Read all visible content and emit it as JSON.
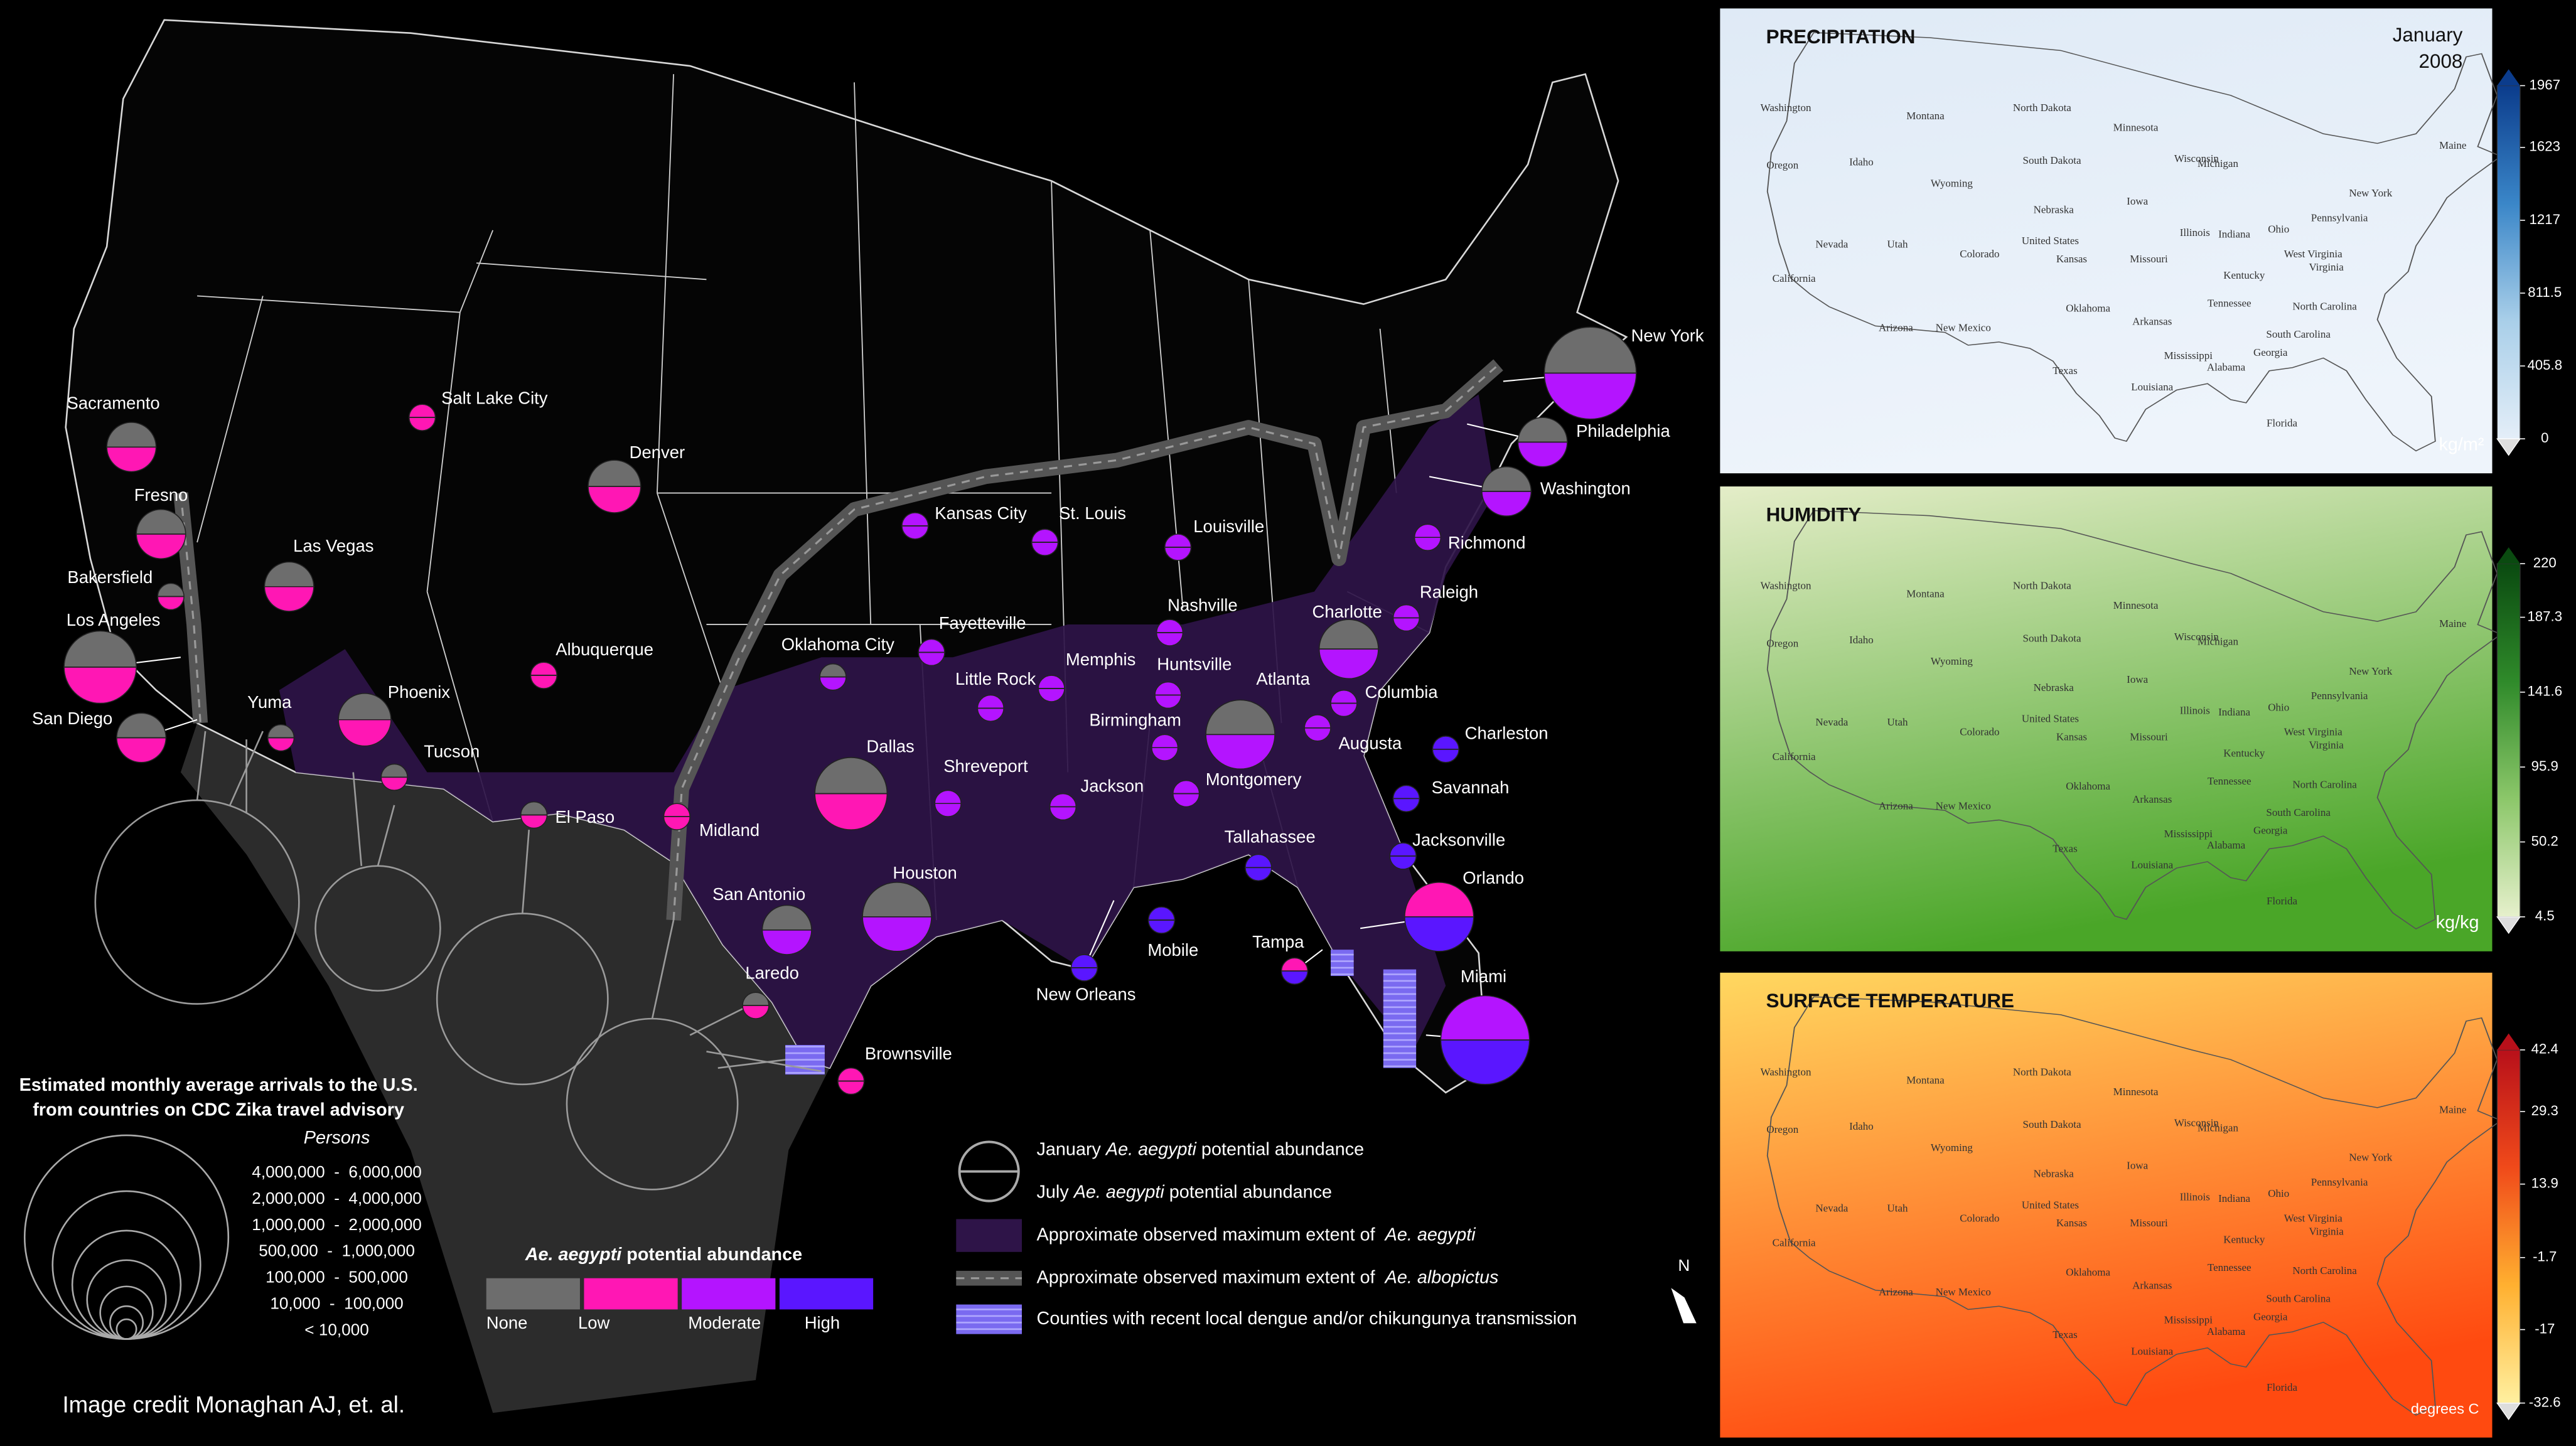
{
  "map": {
    "cities": [
      {
        "name": "New York",
        "january": "None",
        "july": "Moderate"
      },
      {
        "name": "Philadelphia",
        "january": "None",
        "july": "Moderate"
      },
      {
        "name": "Washington",
        "january": "None",
        "july": "Moderate"
      },
      {
        "name": "Richmond",
        "january": "Moderate",
        "july": "Moderate"
      },
      {
        "name": "Raleigh",
        "january": "Moderate",
        "july": "Moderate"
      },
      {
        "name": "Charlotte",
        "january": "None",
        "july": "Moderate"
      },
      {
        "name": "Columbia",
        "january": "Moderate",
        "july": "Moderate"
      },
      {
        "name": "Charleston",
        "january": "High",
        "july": "High"
      },
      {
        "name": "Augusta",
        "january": "Moderate",
        "july": "Moderate"
      },
      {
        "name": "Savannah",
        "january": "High",
        "july": "High"
      },
      {
        "name": "Jacksonville",
        "january": "High",
        "july": "High"
      },
      {
        "name": "Orlando",
        "january": "Low",
        "july": "High"
      },
      {
        "name": "Tampa",
        "january": "Low",
        "july": "High"
      },
      {
        "name": "Miami",
        "january": "Moderate",
        "july": "High"
      },
      {
        "name": "Tallahassee",
        "january": "High",
        "july": "High"
      },
      {
        "name": "Atlanta",
        "january": "None",
        "july": "Moderate"
      },
      {
        "name": "Montgomery",
        "january": "Moderate",
        "july": "Moderate"
      },
      {
        "name": "Birmingham",
        "january": "Moderate",
        "july": "Moderate"
      },
      {
        "name": "Huntsville",
        "january": "Moderate",
        "july": "Moderate"
      },
      {
        "name": "Nashville",
        "january": "Moderate",
        "july": "Moderate"
      },
      {
        "name": "Louisville",
        "january": "Moderate",
        "july": "Moderate"
      },
      {
        "name": "St. Louis",
        "january": "Moderate",
        "july": "Moderate"
      },
      {
        "name": "Kansas City",
        "january": "Moderate",
        "july": "Moderate"
      },
      {
        "name": "Memphis",
        "january": "Moderate",
        "july": "Moderate"
      },
      {
        "name": "Little Rock",
        "january": "Moderate",
        "july": "Moderate"
      },
      {
        "name": "Fayetteville",
        "january": "Moderate",
        "july": "Moderate"
      },
      {
        "name": "Jackson",
        "january": "Moderate",
        "july": "Moderate"
      },
      {
        "name": "Mobile",
        "january": "High",
        "july": "High"
      },
      {
        "name": "New Orleans",
        "january": "High",
        "july": "High"
      },
      {
        "name": "Shreveport",
        "january": "Moderate",
        "july": "Moderate"
      },
      {
        "name": "Dallas",
        "january": "None",
        "july": "Low"
      },
      {
        "name": "Houston",
        "january": "None",
        "july": "Moderate"
      },
      {
        "name": "San Antonio",
        "january": "None",
        "july": "Moderate"
      },
      {
        "name": "Laredo",
        "january": "None",
        "july": "Low"
      },
      {
        "name": "Brownsville",
        "january": "Low",
        "july": "Low"
      },
      {
        "name": "Midland",
        "january": "Low",
        "july": "Low"
      },
      {
        "name": "El Paso",
        "january": "None",
        "july": "Low"
      },
      {
        "name": "Oklahoma City",
        "january": "None",
        "july": "Moderate"
      },
      {
        "name": "Albuquerque",
        "january": "Low",
        "july": "Low"
      },
      {
        "name": "Denver",
        "january": "None",
        "july": "Low"
      },
      {
        "name": "Salt Lake City",
        "january": "Low",
        "july": "Low"
      },
      {
        "name": "Las Vegas",
        "january": "None",
        "july": "Low"
      },
      {
        "name": "Phoenix",
        "january": "None",
        "july": "Low"
      },
      {
        "name": "Tucson",
        "january": "None",
        "july": "Low"
      },
      {
        "name": "Yuma",
        "january": "None",
        "july": "Low"
      },
      {
        "name": "San Diego",
        "january": "None",
        "july": "Low"
      },
      {
        "name": "Los Angeles",
        "january": "None",
        "july": "Low"
      },
      {
        "name": "Bakersfield",
        "january": "None",
        "july": "Low"
      },
      {
        "name": "Fresno",
        "january": "None",
        "july": "Low"
      },
      {
        "name": "Sacramento",
        "january": "None",
        "july": "Low"
      }
    ],
    "abundance_legend": {
      "title_italic": "Ae. aegypti",
      "title_rest": " potential abundance",
      "levels": [
        {
          "label": "None",
          "color": "#6d6d6d"
        },
        {
          "label": "Low",
          "color": "#ff17b4"
        },
        {
          "label": "Moderate",
          "color": "#b414ff"
        },
        {
          "label": "High",
          "color": "#5a16ff"
        }
      ]
    },
    "arrivals_legend": {
      "title": [
        "Estimated monthly average arrivals to the U.S.",
        "from countries on CDC Zika travel advisory"
      ],
      "unit": "Persons",
      "classes": [
        "4,000,000  -  6,000,000",
        "2,000,000  -  4,000,000",
        "1,000,000  -  2,000,000",
        "500,000  -  1,000,000",
        "100,000  -  500,000",
        "10,000  -  100,000",
        "< 10,000"
      ]
    },
    "key": [
      [
        {
          "text": "January "
        },
        {
          "text": "Ae. aegypti",
          "italic": true
        },
        {
          "text": " potential abundance"
        }
      ],
      [
        {
          "text": "July "
        },
        {
          "text": "Ae. aegypti",
          "italic": true
        },
        {
          "text": " potential abundance"
        }
      ],
      [
        {
          "text": "Approximate observed maximum extent of  "
        },
        {
          "text": "Ae. aegypti",
          "italic": true
        }
      ],
      [
        {
          "text": "Approximate observed maximum extent of  "
        },
        {
          "text": "Ae. albopictus",
          "italic": true
        }
      ],
      [
        {
          "text": "Counties with recent local dengue and/or chikungunya transmission"
        }
      ]
    ],
    "credit": "Image credit Monaghan AJ, et. al.",
    "north": "N"
  },
  "panels": [
    {
      "title": "PRECIPITATION",
      "date": [
        "January",
        "2008"
      ],
      "unit": "kg/m²",
      "ticks": [
        0,
        405.8,
        811.5,
        1217,
        1623,
        1967
      ],
      "colors": [
        "#0b3c8c",
        "#3a86c8",
        "#a9cfe9",
        "#e4eef8"
      ],
      "fill": [
        "#dfeaf6",
        "#eef4fb"
      ]
    },
    {
      "title": "HUMIDITY",
      "unit": "kg/kg",
      "ticks": [
        4.5,
        50.2,
        95.9,
        141.6,
        187.3,
        220
      ],
      "colors": [
        "#0a4a10",
        "#2f8a2a",
        "#8cc76a",
        "#e6f0cc"
      ],
      "fill": [
        "#e4edc8",
        "#4aa628"
      ]
    },
    {
      "title": "SURFACE TEMPERATURE",
      "unit": "degrees C",
      "ticks": [
        -32.6,
        -17,
        -1.7,
        13.9,
        29.3,
        42.4
      ],
      "colors": [
        "#b8101a",
        "#f04a1a",
        "#ffb030",
        "#fff0a0"
      ],
      "fill": [
        "#ffd860",
        "#ff4a10"
      ]
    }
  ],
  "state_labels": [
    "Washington",
    "Oregon",
    "California",
    "Nevada",
    "Idaho",
    "Montana",
    "Wyoming",
    "Utah",
    "Arizona",
    "Colorado",
    "New Mexico",
    "North Dakota",
    "South Dakota",
    "Nebraska",
    "United States",
    "Kansas",
    "Oklahoma",
    "Texas",
    "Minnesota",
    "Iowa",
    "Missouri",
    "Arkansas",
    "Louisiana",
    "Mississippi",
    "Alabama",
    "Wisconsin",
    "Illinois",
    "Michigan",
    "Indiana",
    "Ohio",
    "Kentucky",
    "Tennessee",
    "Georgia",
    "Florida",
    "South Carolina",
    "North Carolina",
    "Virginia",
    "West Virginia",
    "Pennsylvania",
    "New York",
    "Maine"
  ]
}
